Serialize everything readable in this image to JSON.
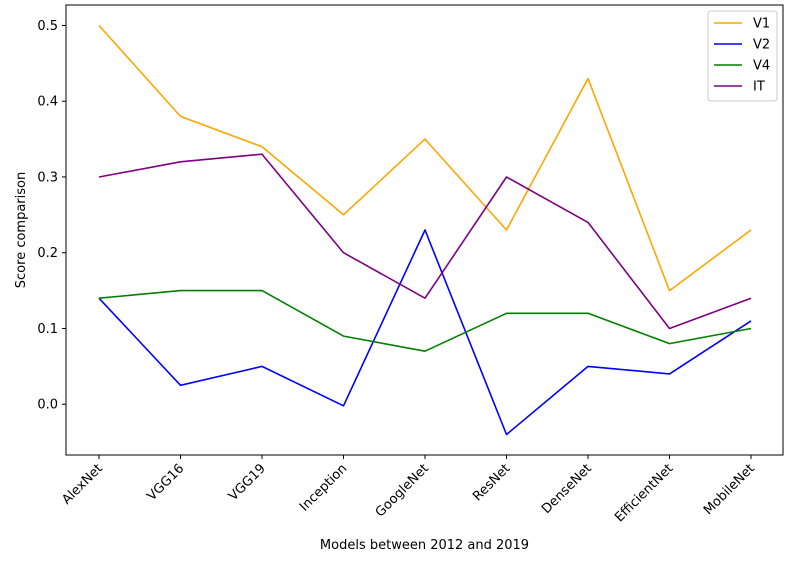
{
  "chart_data": {
    "type": "line",
    "title": "",
    "xlabel": "Models between 2012 and 2019",
    "ylabel": "Score comparison",
    "categories": [
      "AlexNet",
      "VGG16",
      "VGG19",
      "Inception",
      "GoogleNet",
      "ResNet",
      "DenseNet",
      "EfficientNet",
      "MobileNet"
    ],
    "ylim": [
      -0.067,
      0.527
    ],
    "yticks": [
      "0.0",
      "0.1",
      "0.2",
      "0.3",
      "0.4",
      "0.5"
    ],
    "grid": false,
    "legend_position": "top-right",
    "series": [
      {
        "name": "V1",
        "color": "#ffa500",
        "values": [
          0.5,
          0.38,
          0.34,
          0.25,
          0.35,
          0.23,
          0.43,
          0.15,
          0.23
        ]
      },
      {
        "name": "V2",
        "color": "#0000ff",
        "values": [
          0.14,
          0.025,
          0.05,
          -0.002,
          0.23,
          -0.04,
          0.05,
          0.04,
          0.11
        ]
      },
      {
        "name": "V4",
        "color": "#008000",
        "values": [
          0.14,
          0.15,
          0.15,
          0.09,
          0.07,
          0.12,
          0.12,
          0.08,
          0.1
        ]
      },
      {
        "name": "IT",
        "color": "#800080",
        "values": [
          0.3,
          0.32,
          0.33,
          0.2,
          0.14,
          0.3,
          0.24,
          0.1,
          0.14
        ]
      }
    ]
  }
}
